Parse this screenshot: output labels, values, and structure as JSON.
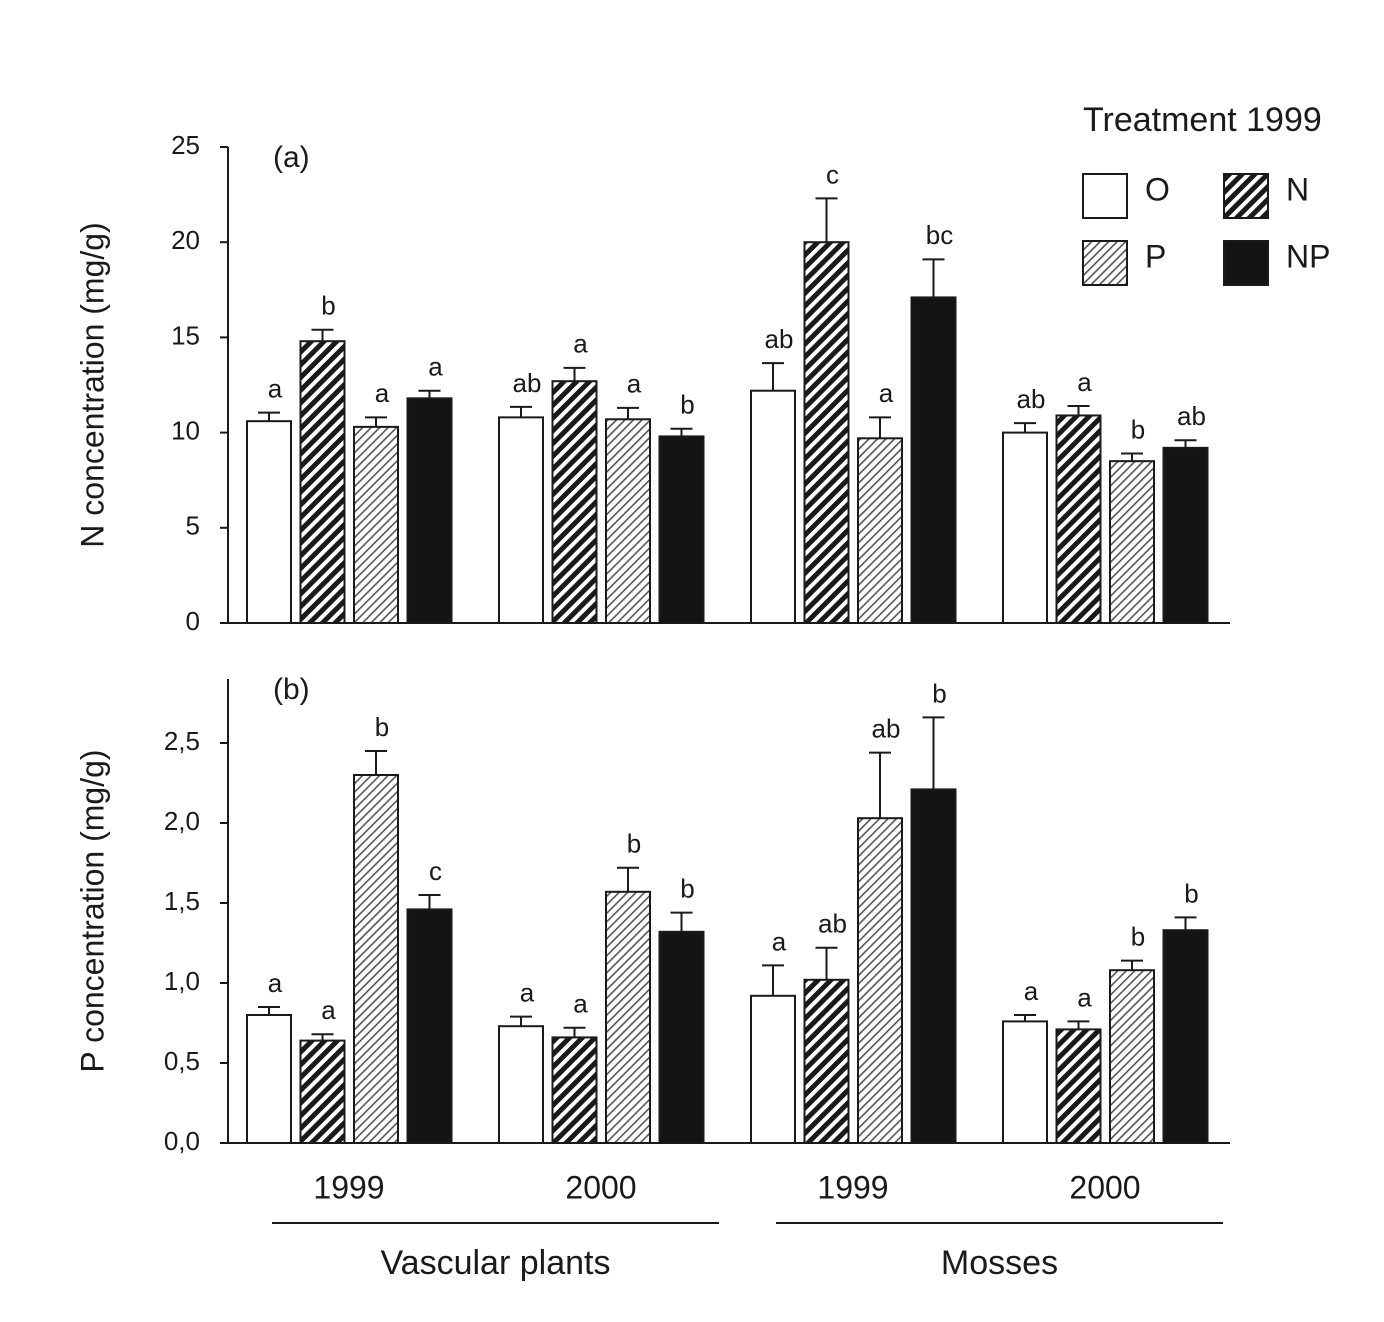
{
  "chart_data": [
    {
      "type": "bar",
      "panel_label": "(a)",
      "y_label": "N concentration (mg/g)",
      "ylim": [
        0,
        25
      ],
      "yticks": [
        0,
        5,
        10,
        15,
        20,
        25
      ],
      "legend_title": "Treatment 1999",
      "legend": "upper right",
      "series": [
        {
          "name": "O",
          "color": "#ffffff",
          "values": [
            10.6,
            10.8,
            12.2,
            10.0
          ],
          "errors": [
            0.45,
            0.55,
            1.45,
            0.5
          ],
          "letters": [
            "a",
            "ab",
            "ab",
            "ab"
          ]
        },
        {
          "name": "N",
          "color": "#1a1a1a",
          "hatch": "dense",
          "values": [
            14.8,
            12.7,
            20.0,
            10.9
          ],
          "errors": [
            0.6,
            0.7,
            2.3,
            0.5
          ],
          "letters": [
            "b",
            "a",
            "c",
            "a"
          ]
        },
        {
          "name": "P",
          "color": "#999999",
          "hatch": "light",
          "values": [
            10.3,
            10.7,
            9.7,
            8.5
          ],
          "errors": [
            0.5,
            0.6,
            1.1,
            0.4
          ],
          "letters": [
            "a",
            "a",
            "a",
            "b"
          ]
        },
        {
          "name": "NP",
          "color": "#141414",
          "values": [
            11.8,
            9.8,
            17.1,
            9.2
          ],
          "errors": [
            0.4,
            0.4,
            2.0,
            0.4
          ],
          "letters": [
            "a",
            "b",
            "bc",
            "ab"
          ]
        }
      ]
    },
    {
      "type": "bar",
      "panel_label": "(b)",
      "y_label": "P concentration (mg/g)",
      "ylim": [
        0,
        2.9
      ],
      "yticks": [
        {
          "value": 0,
          "label": "0,0"
        },
        {
          "value": 0.5,
          "label": "0,5"
        },
        {
          "value": 1,
          "label": "1,0"
        },
        {
          "value": 1.5,
          "label": "1,5"
        },
        {
          "value": 2,
          "label": "2,0"
        },
        {
          "value": 2.5,
          "label": "2,5"
        }
      ],
      "categories": [
        "1999",
        "2000",
        "1999",
        "2000"
      ],
      "groups": [
        "Vascular plants",
        "Mosses"
      ],
      "series": [
        {
          "color": "#ffffff",
          "values": [
            0.8,
            0.73,
            0.92,
            0.76
          ],
          "errors": [
            0.05,
            0.06,
            0.19,
            0.04
          ],
          "letters": [
            "a",
            "a",
            "a",
            "a"
          ]
        },
        {
          "color": "#1a1a1a",
          "hatch": "dense",
          "values": [
            0.64,
            0.66,
            1.02,
            0.71
          ],
          "errors": [
            0.04,
            0.06,
            0.2,
            0.05
          ],
          "letters": [
            "a",
            "a",
            "ab",
            "a"
          ]
        },
        {
          "color": "#999999",
          "hatch": "light",
          "values": [
            2.3,
            1.57,
            2.03,
            1.08
          ],
          "errors": [
            0.15,
            0.15,
            0.41,
            0.06
          ],
          "letters": [
            "b",
            "b",
            "ab",
            "b"
          ]
        },
        {
          "color": "#141414",
          "values": [
            1.46,
            1.32,
            2.21,
            1.33
          ],
          "errors": [
            0.09,
            0.12,
            0.45,
            0.08
          ],
          "letters": [
            "c",
            "b",
            "b",
            "b"
          ]
        }
      ]
    }
  ]
}
